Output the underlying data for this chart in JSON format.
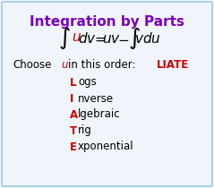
{
  "title": "Integration by Parts",
  "title_color": "#7B00BB",
  "title_fontsize": 11,
  "background_color": "#F0F5FB",
  "border_color": "#A0C8E0",
  "letter_color": "#CC0000",
  "rest_color": "#000000",
  "liate_color": "#CC0000",
  "liate_items": [
    {
      "letter": "L",
      "rest": "ogs"
    },
    {
      "letter": "I",
      "rest": "nverse"
    },
    {
      "letter": "A",
      "rest": "lgebraic"
    },
    {
      "letter": "T",
      "rest": "rig"
    },
    {
      "letter": "E",
      "rest": "xponential"
    }
  ],
  "formula_fontsize": 11,
  "choose_fontsize": 8.5,
  "list_fontsize": 8.5
}
